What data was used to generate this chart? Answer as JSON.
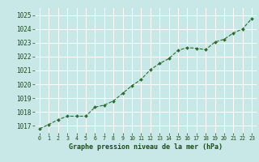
{
  "x": [
    0,
    1,
    2,
    3,
    4,
    5,
    6,
    7,
    8,
    9,
    10,
    11,
    12,
    13,
    14,
    15,
    16,
    17,
    18,
    19,
    20,
    21,
    22,
    23
  ],
  "y": [
    1016.8,
    1017.1,
    1017.45,
    1017.7,
    1017.7,
    1017.7,
    1018.35,
    1018.5,
    1018.8,
    1019.35,
    1019.9,
    1020.35,
    1021.05,
    1021.5,
    1021.85,
    1022.45,
    1022.65,
    1022.6,
    1022.5,
    1023.05,
    1023.25,
    1023.7,
    1024.0,
    1024.75
  ],
  "line_color": "#2d6a2d",
  "marker_color": "#2d6a2d",
  "bg_color": "#c8e8e8",
  "grid_color": "#ffffff",
  "xlabel": "Graphe pression niveau de la mer (hPa)",
  "xlabel_color": "#1a4a1a",
  "tick_color": "#1a4a1a",
  "ylim": [
    1016.5,
    1025.5
  ],
  "yticks": [
    1017,
    1018,
    1019,
    1020,
    1021,
    1022,
    1023,
    1024,
    1025
  ],
  "xlim": [
    -0.5,
    23.5
  ],
  "xticks": [
    0,
    1,
    2,
    3,
    4,
    5,
    6,
    7,
    8,
    9,
    10,
    11,
    12,
    13,
    14,
    15,
    16,
    17,
    18,
    19,
    20,
    21,
    22,
    23
  ]
}
